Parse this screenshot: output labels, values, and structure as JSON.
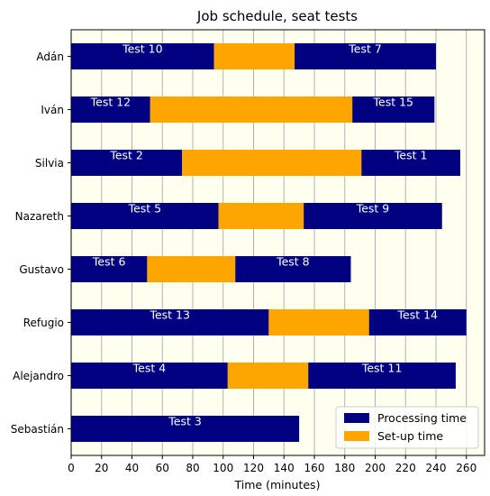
{
  "chart_data": {
    "type": "bar",
    "orientation": "horizontal",
    "stacked": true,
    "title": "Job schedule, seat tests",
    "xlabel": "Time (minutes)",
    "ylabel": "",
    "xlim": [
      0,
      272
    ],
    "xticks": [
      0,
      20,
      40,
      60,
      80,
      100,
      120,
      140,
      160,
      180,
      200,
      220,
      240,
      260
    ],
    "grid": "vertical",
    "background": "#fffff0",
    "legend": {
      "placement": "bottom-right",
      "entries": [
        {
          "label": "Processing time",
          "color": "#000080"
        },
        {
          "label": "Set-up time",
          "color": "#ffa500"
        }
      ]
    },
    "colors": {
      "processing": "#000080",
      "setup": "#ffa500"
    },
    "categories": [
      "Adán",
      "Iván",
      "Silvia",
      "Nazareth",
      "Gustavo",
      "Refugio",
      "Alejandro",
      "Sebastián"
    ],
    "rows": [
      {
        "name": "Adán",
        "segments": [
          {
            "kind": "processing",
            "start": 0,
            "end": 94,
            "label": "Test 10"
          },
          {
            "kind": "setup",
            "start": 94,
            "end": 147,
            "label": ""
          },
          {
            "kind": "processing",
            "start": 147,
            "end": 240,
            "label": "Test 7"
          }
        ]
      },
      {
        "name": "Iván",
        "segments": [
          {
            "kind": "processing",
            "start": 0,
            "end": 52,
            "label": "Test 12"
          },
          {
            "kind": "setup",
            "start": 52,
            "end": 185,
            "label": ""
          },
          {
            "kind": "processing",
            "start": 185,
            "end": 239,
            "label": "Test 15"
          }
        ]
      },
      {
        "name": "Silvia",
        "segments": [
          {
            "kind": "processing",
            "start": 0,
            "end": 73,
            "label": "Test 2"
          },
          {
            "kind": "setup",
            "start": 73,
            "end": 191,
            "label": ""
          },
          {
            "kind": "processing",
            "start": 191,
            "end": 256,
            "label": "Test 1"
          }
        ]
      },
      {
        "name": "Nazareth",
        "segments": [
          {
            "kind": "processing",
            "start": 0,
            "end": 97,
            "label": "Test 5"
          },
          {
            "kind": "setup",
            "start": 97,
            "end": 153,
            "label": ""
          },
          {
            "kind": "processing",
            "start": 153,
            "end": 244,
            "label": "Test 9"
          }
        ]
      },
      {
        "name": "Gustavo",
        "segments": [
          {
            "kind": "processing",
            "start": 0,
            "end": 50,
            "label": "Test 6"
          },
          {
            "kind": "setup",
            "start": 50,
            "end": 108,
            "label": ""
          },
          {
            "kind": "processing",
            "start": 108,
            "end": 184,
            "label": "Test 8"
          }
        ]
      },
      {
        "name": "Refugio",
        "segments": [
          {
            "kind": "processing",
            "start": 0,
            "end": 130,
            "label": "Test 13"
          },
          {
            "kind": "setup",
            "start": 130,
            "end": 196,
            "label": ""
          },
          {
            "kind": "processing",
            "start": 196,
            "end": 260,
            "label": "Test 14"
          }
        ]
      },
      {
        "name": "Alejandro",
        "segments": [
          {
            "kind": "processing",
            "start": 0,
            "end": 103,
            "label": "Test 4"
          },
          {
            "kind": "setup",
            "start": 103,
            "end": 156,
            "label": ""
          },
          {
            "kind": "processing",
            "start": 156,
            "end": 253,
            "label": "Test 11"
          }
        ]
      },
      {
        "name": "Sebastián",
        "segments": [
          {
            "kind": "processing",
            "start": 0,
            "end": 150,
            "label": "Test 3"
          }
        ]
      }
    ]
  }
}
